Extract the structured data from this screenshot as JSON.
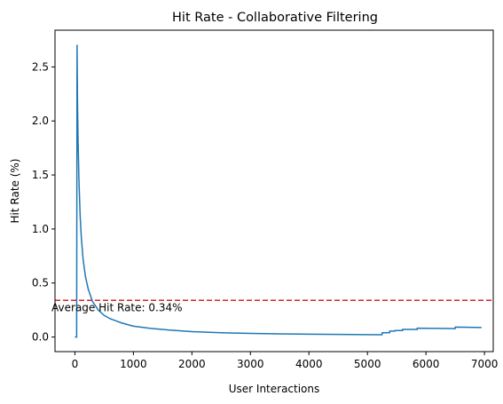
{
  "chart_data": {
    "type": "line",
    "title": "Hit Rate - Collaborative Filtering",
    "xlabel": "User Interactions",
    "ylabel": "Hit Rate (%)",
    "xlim": [
      -340,
      7150
    ],
    "ylim": [
      -0.135,
      2.84
    ],
    "xticks": [
      0,
      1000,
      2000,
      3000,
      4000,
      5000,
      6000,
      7000
    ],
    "yticks": [
      0.0,
      0.5,
      1.0,
      1.5,
      2.0,
      2.5
    ],
    "xtick_labels": [
      "0",
      "1000",
      "2000",
      "3000",
      "4000",
      "5000",
      "6000",
      "7000"
    ],
    "ytick_labels": [
      "0.0",
      "0.5",
      "1.0",
      "1.5",
      "2.0",
      "2.5"
    ],
    "grid": false,
    "series": [
      {
        "color": "#1f77b4",
        "x": [
          0,
          30,
          37,
          45,
          55,
          70,
          90,
          110,
          140,
          180,
          230,
          300,
          400,
          500,
          600,
          800,
          1000,
          1300,
          1600,
          2000,
          2500,
          3000,
          3500,
          4000,
          4500,
          5000,
          5250,
          5250,
          5380,
          5380,
          5470,
          5470,
          5600,
          5600,
          5850,
          5850,
          6500,
          6500,
          6950
        ],
        "y": [
          0.0,
          0.0,
          2.7,
          2.16,
          1.8,
          1.44,
          1.12,
          0.92,
          0.72,
          0.56,
          0.44,
          0.33,
          0.25,
          0.2,
          0.17,
          0.13,
          0.1,
          0.08,
          0.065,
          0.05,
          0.04,
          0.033,
          0.029,
          0.026,
          0.024,
          0.022,
          0.021,
          0.04,
          0.04,
          0.055,
          0.055,
          0.06,
          0.06,
          0.07,
          0.07,
          0.082,
          0.078,
          0.092,
          0.088
        ]
      }
    ],
    "hline": {
      "y": 0.34,
      "color": "#d62728",
      "style": "dashed"
    },
    "annotation": {
      "text": "Average Hit Rate: 0.34%",
      "x": -400,
      "y": 0.27
    }
  }
}
